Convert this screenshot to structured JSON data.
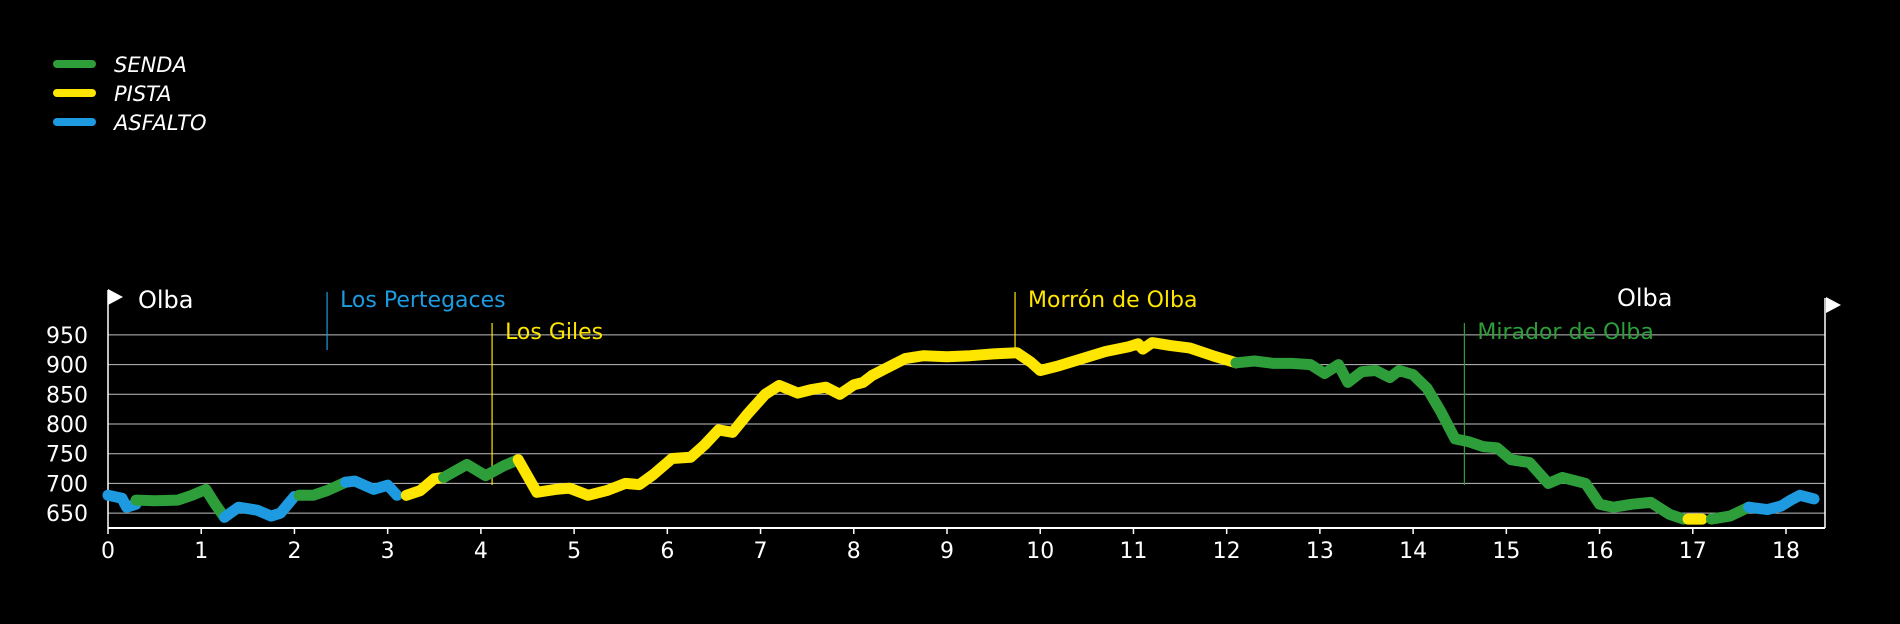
{
  "colors": {
    "senda": "#2e9e3a",
    "pista": "#ffe600",
    "asfalto": "#1e9be0",
    "grid": "#ffffff",
    "background": "#000000"
  },
  "chart_data": {
    "type": "line",
    "xlim": [
      0,
      18.3
    ],
    "ylim": [
      625,
      975
    ],
    "x_ticks": [
      "0",
      "1",
      "2",
      "3",
      "4",
      "5",
      "6",
      "7",
      "8",
      "9",
      "10",
      "11",
      "12",
      "13",
      "14",
      "15",
      "16",
      "17",
      "18"
    ],
    "y_ticks": [
      "650",
      "700",
      "750",
      "800",
      "850",
      "900",
      "950"
    ],
    "legend": [
      {
        "key": "senda",
        "label": "SENDA"
      },
      {
        "key": "pista",
        "label": "PISTA"
      },
      {
        "key": "asfalto",
        "label": "ASFALTO"
      }
    ],
    "start_label": "Olba",
    "end_label": "Olba",
    "pois": [
      {
        "name": "Los Pertegaces",
        "x": 2.35,
        "color": "#1e9be0",
        "row": "upper"
      },
      {
        "name": "Los Giles",
        "x": 4.12,
        "color": "#ffe600",
        "row": "lower"
      },
      {
        "name": "Morrón de Olba",
        "x": 9.73,
        "color": "#ffe600",
        "row": "upper"
      },
      {
        "name": "Mirador de Olba",
        "x": 14.55,
        "color": "#2e9e3a",
        "row": "lower"
      }
    ],
    "segments": [
      {
        "type": "asfalto",
        "points": [
          [
            0,
            680
          ],
          [
            0.15,
            675
          ],
          [
            0.2,
            660
          ],
          [
            0.3,
            665
          ]
        ]
      },
      {
        "type": "senda",
        "points": [
          [
            0.3,
            672
          ],
          [
            0.5,
            671
          ],
          [
            0.75,
            672
          ],
          [
            0.9,
            680
          ],
          [
            1.05,
            690
          ],
          [
            1.15,
            665
          ],
          [
            1.25,
            643
          ]
        ]
      },
      {
        "type": "asfalto",
        "points": [
          [
            1.25,
            643
          ],
          [
            1.4,
            660
          ],
          [
            1.6,
            655
          ],
          [
            1.75,
            645
          ],
          [
            1.85,
            650
          ],
          [
            2.0,
            678
          ]
        ]
      },
      {
        "type": "senda",
        "points": [
          [
            2.05,
            680
          ],
          [
            2.2,
            680
          ],
          [
            2.35,
            688
          ],
          [
            2.55,
            702
          ]
        ]
      },
      {
        "type": "asfalto",
        "points": [
          [
            2.55,
            702
          ],
          [
            2.65,
            704
          ],
          [
            2.85,
            690
          ],
          [
            3.0,
            697
          ],
          [
            3.1,
            680
          ]
        ]
      },
      {
        "type": "pista",
        "points": [
          [
            3.2,
            680
          ],
          [
            3.35,
            688
          ],
          [
            3.5,
            708
          ],
          [
            3.6,
            710
          ]
        ]
      },
      {
        "type": "senda",
        "points": [
          [
            3.6,
            710
          ],
          [
            3.85,
            732
          ],
          [
            4.05,
            713
          ],
          [
            4.25,
            730
          ],
          [
            4.4,
            740
          ]
        ]
      },
      {
        "type": "pista",
        "points": [
          [
            4.4,
            740
          ],
          [
            4.6,
            685
          ],
          [
            4.8,
            690
          ],
          [
            4.95,
            692
          ],
          [
            5.15,
            680
          ],
          [
            5.35,
            688
          ],
          [
            5.55,
            700
          ],
          [
            5.7,
            698
          ],
          [
            5.85,
            715
          ],
          [
            6.05,
            742
          ],
          [
            6.25,
            744
          ],
          [
            6.4,
            765
          ],
          [
            6.55,
            790
          ],
          [
            6.7,
            786
          ],
          [
            6.85,
            815
          ],
          [
            7.05,
            850
          ],
          [
            7.2,
            865
          ],
          [
            7.4,
            852
          ],
          [
            7.55,
            858
          ],
          [
            7.7,
            862
          ],
          [
            7.85,
            850
          ],
          [
            8.0,
            866
          ],
          [
            8.1,
            870
          ],
          [
            8.2,
            882
          ],
          [
            8.35,
            894
          ],
          [
            8.55,
            910
          ],
          [
            8.75,
            915
          ],
          [
            9.0,
            913
          ],
          [
            9.25,
            915
          ],
          [
            9.5,
            918
          ],
          [
            9.75,
            920
          ],
          [
            9.9,
            904
          ],
          [
            10.0,
            890
          ],
          [
            10.2,
            898
          ],
          [
            10.45,
            910
          ],
          [
            10.7,
            922
          ],
          [
            10.95,
            930
          ],
          [
            11.05,
            935
          ],
          [
            11.1,
            926
          ],
          [
            11.2,
            937
          ],
          [
            11.4,
            932
          ],
          [
            11.6,
            928
          ],
          [
            11.85,
            915
          ],
          [
            12.1,
            903
          ]
        ]
      },
      {
        "type": "senda",
        "points": [
          [
            12.1,
            903
          ],
          [
            12.3,
            906
          ],
          [
            12.5,
            902
          ],
          [
            12.7,
            902
          ],
          [
            12.9,
            900
          ],
          [
            13.05,
            885
          ],
          [
            13.2,
            900
          ],
          [
            13.3,
            870
          ],
          [
            13.45,
            888
          ],
          [
            13.6,
            890
          ],
          [
            13.75,
            878
          ],
          [
            13.85,
            890
          ],
          [
            14.0,
            883
          ],
          [
            14.15,
            860
          ],
          [
            14.3,
            820
          ],
          [
            14.45,
            775
          ],
          [
            14.6,
            770
          ],
          [
            14.75,
            762
          ],
          [
            14.9,
            760
          ],
          [
            15.05,
            740
          ],
          [
            15.25,
            735
          ],
          [
            15.45,
            700
          ],
          [
            15.6,
            710
          ],
          [
            15.85,
            700
          ],
          [
            16.0,
            665
          ],
          [
            16.15,
            660
          ],
          [
            16.35,
            665
          ],
          [
            16.55,
            668
          ],
          [
            16.75,
            648
          ],
          [
            16.9,
            640
          ]
        ]
      },
      {
        "type": "pista",
        "points": [
          [
            16.95,
            640
          ],
          [
            17.1,
            640
          ]
        ]
      },
      {
        "type": "senda",
        "points": [
          [
            17.2,
            640
          ],
          [
            17.4,
            645
          ],
          [
            17.6,
            660
          ]
        ]
      },
      {
        "type": "asfalto",
        "points": [
          [
            17.6,
            660
          ],
          [
            17.8,
            656
          ],
          [
            17.95,
            662
          ],
          [
            18.05,
            672
          ],
          [
            18.15,
            680
          ],
          [
            18.3,
            674
          ]
        ]
      }
    ]
  }
}
